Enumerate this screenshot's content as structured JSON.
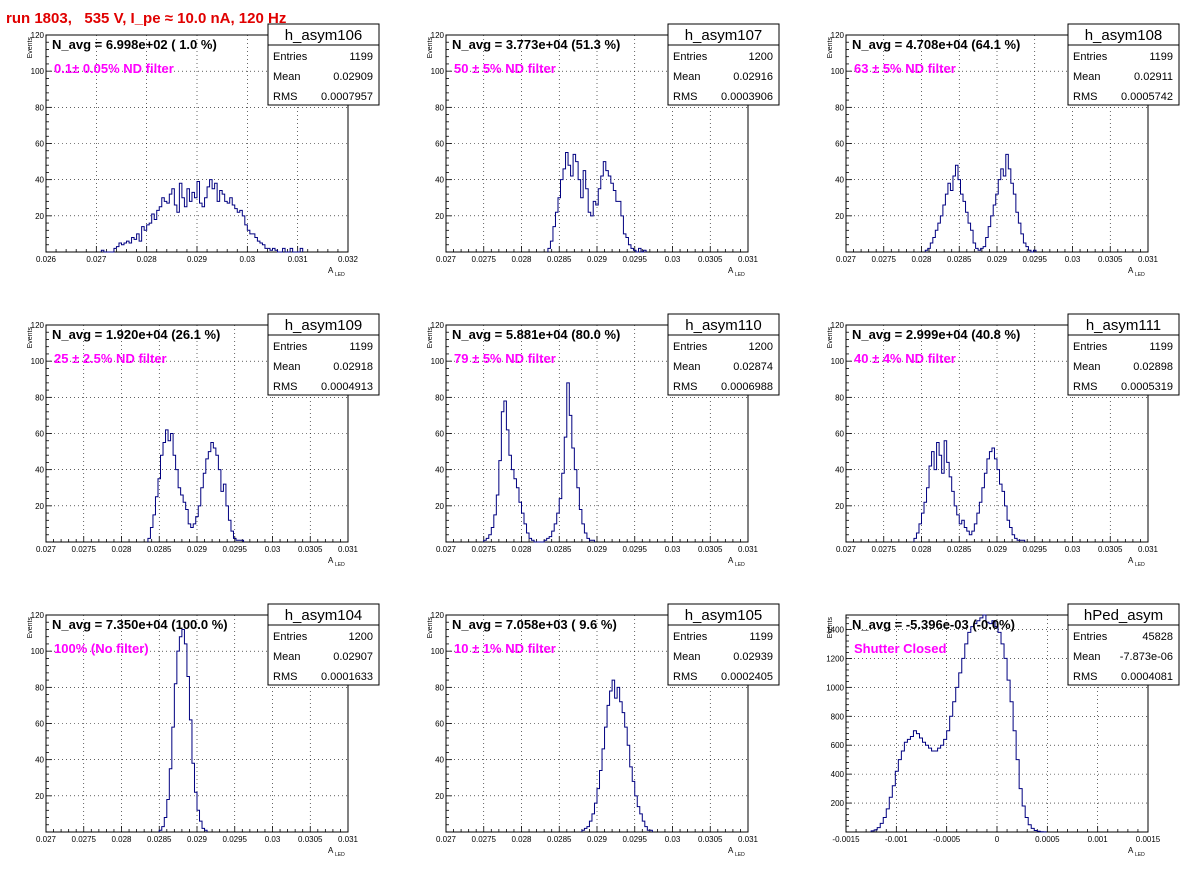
{
  "run_title": "run 1803,   535 V, I_pe ≈ 10.0 nA, 120 Hz",
  "colors": {
    "histogram_line": "#000080",
    "title_red": "#e00000",
    "filter_label": "#ff00ff",
    "grid": "#000000"
  },
  "y_axis_label": "Events",
  "x_axis_label_main": "A",
  "x_axis_label_sub": "LED",
  "stats_labels": {
    "entries": "Entries",
    "mean": "Mean",
    "rms": "RMS"
  },
  "chart_data": [
    {
      "type": "bar",
      "name": "h_asym106",
      "navg_label": "N_avg = 6.998e+02 ( 1.0 %)",
      "filter_label": "0.1± 0.05% ND filter",
      "entries": "1199",
      "mean": "0.02909",
      "rms": "0.0007957",
      "xlim": [
        0.026,
        0.032
      ],
      "ylim": [
        0,
        120
      ],
      "xticks": [
        0.026,
        0.027,
        0.028,
        0.029,
        0.03,
        0.031,
        0.032
      ],
      "xtick_labels": [
        "0.026",
        "0.027",
        "0.028",
        "0.029",
        "0.03",
        "0.031",
        "0.032"
      ],
      "yticks": [
        20,
        40,
        60,
        80,
        100,
        120
      ],
      "ytick_labels": [
        "20",
        "40",
        "60",
        "80",
        "100",
        "120"
      ],
      "bin_start": 0.0271,
      "bin_width": 5e-05,
      "values": [
        1,
        0,
        0,
        0,
        0,
        2,
        3,
        5,
        4,
        5,
        6,
        5,
        8,
        7,
        10,
        6,
        14,
        12,
        15,
        16,
        21,
        18,
        23,
        25,
        30,
        28,
        27,
        32,
        35,
        26,
        22,
        38,
        30,
        25,
        35,
        28,
        33,
        30,
        39,
        27,
        25,
        30,
        36,
        40,
        35,
        38,
        28,
        34,
        32,
        28,
        27,
        30,
        26,
        24,
        22,
        23,
        20,
        15,
        12,
        10,
        10,
        8,
        6,
        5,
        4,
        2,
        2,
        1,
        2,
        1,
        0,
        0,
        2,
        0,
        0,
        2,
        0,
        0,
        0,
        2
      ]
    },
    {
      "type": "bar",
      "name": "h_asym107",
      "navg_label": "N_avg = 3.773e+04 (51.3 %)",
      "filter_label": " 50 ± 5% ND filter",
      "entries": "1200",
      "mean": "0.02916",
      "rms": "0.0003906",
      "xlim": [
        0.027,
        0.031
      ],
      "ylim": [
        0,
        120
      ],
      "xticks": [
        0.027,
        0.0275,
        0.028,
        0.0285,
        0.029,
        0.0295,
        0.03,
        0.0305,
        0.031
      ],
      "xtick_labels": [
        "0.027",
        "0.0275",
        "0.028",
        "0.0285",
        "0.029",
        "0.0295",
        "0.03",
        "0.0305",
        "0.031"
      ],
      "yticks": [
        20,
        40,
        60,
        80,
        100,
        120
      ],
      "ytick_labels": [
        "20",
        "40",
        "60",
        "80",
        "100",
        "120"
      ],
      "bin_start": 0.02835,
      "bin_width": 3.333e-05,
      "values": [
        2,
        6,
        14,
        22,
        30,
        40,
        46,
        55,
        48,
        42,
        54,
        50,
        40,
        30,
        45,
        35,
        22,
        20,
        28,
        26,
        35,
        42,
        50,
        45,
        42,
        38,
        34,
        28,
        28,
        20,
        10,
        8,
        4,
        2,
        1,
        0,
        2,
        0,
        1
      ]
    },
    {
      "type": "bar",
      "name": "h_asym108",
      "navg_label": "N_avg = 4.708e+04 (64.1 %)",
      "filter_label": " 63 ± 5% ND filter",
      "entries": "1199",
      "mean": "0.02911",
      "rms": "0.0005742",
      "xlim": [
        0.027,
        0.031
      ],
      "ylim": [
        0,
        120
      ],
      "xticks": [
        0.027,
        0.0275,
        0.028,
        0.0285,
        0.029,
        0.0295,
        0.03,
        0.0305,
        0.031
      ],
      "xtick_labels": [
        "0.027",
        "0.0275",
        "0.028",
        "0.0285",
        "0.029",
        "0.0295",
        "0.03",
        "0.0305",
        "0.031"
      ],
      "yticks": [
        20,
        40,
        60,
        80,
        100,
        120
      ],
      "ytick_labels": [
        "20",
        "40",
        "60",
        "80",
        "100",
        "120"
      ],
      "bin_start": 0.02805,
      "bin_width": 3.333e-05,
      "values": [
        1,
        2,
        5,
        8,
        12,
        16,
        20,
        26,
        32,
        38,
        34,
        42,
        48,
        40,
        32,
        28,
        22,
        16,
        12,
        5,
        2,
        1,
        2,
        3,
        8,
        14,
        20,
        26,
        32,
        40,
        46,
        42,
        54,
        46,
        38,
        32,
        22,
        16,
        10,
        5,
        3,
        1,
        0,
        1
      ]
    },
    {
      "type": "bar",
      "name": "h_asym109",
      "navg_label": "N_avg = 1.920e+04 (26.1 %)",
      "filter_label": " 25 ± 2.5% ND filter",
      "entries": "1199",
      "mean": "0.02918",
      "rms": "0.0004913",
      "xlim": [
        0.027,
        0.031
      ],
      "ylim": [
        0,
        120
      ],
      "xticks": [
        0.027,
        0.0275,
        0.028,
        0.0285,
        0.029,
        0.0295,
        0.03,
        0.0305,
        0.031
      ],
      "xtick_labels": [
        "0.027",
        "0.0275",
        "0.028",
        "0.0285",
        "0.029",
        "0.0295",
        "0.03",
        "0.0305",
        "0.031"
      ],
      "yticks": [
        20,
        40,
        60,
        80,
        100,
        120
      ],
      "ytick_labels": [
        "20",
        "40",
        "60",
        "80",
        "100",
        "120"
      ],
      "bin_start": 0.02835,
      "bin_width": 3.333e-05,
      "values": [
        2,
        8,
        15,
        25,
        35,
        48,
        55,
        62,
        56,
        60,
        48,
        40,
        30,
        26,
        22,
        18,
        10,
        8,
        10,
        14,
        20,
        30,
        38,
        46,
        50,
        55,
        52,
        48,
        40,
        28,
        32,
        20,
        12,
        6,
        2,
        1,
        1,
        1
      ]
    },
    {
      "type": "bar",
      "name": "h_asym110",
      "navg_label": "N_avg = 5.881e+04 (80.0 %)",
      "filter_label": " 79 ± 5% ND filter",
      "entries": "1200",
      "mean": "0.02874",
      "rms": "0.0006988",
      "xlim": [
        0.027,
        0.031
      ],
      "ylim": [
        0,
        120
      ],
      "xticks": [
        0.027,
        0.0275,
        0.028,
        0.0285,
        0.029,
        0.0295,
        0.03,
        0.0305,
        0.031
      ],
      "xtick_labels": [
        "0.027",
        "0.0275",
        "0.028",
        "0.0285",
        "0.029",
        "0.0295",
        "0.03",
        "0.0305",
        "0.031"
      ],
      "yticks": [
        20,
        40,
        60,
        80,
        100,
        120
      ],
      "ytick_labels": [
        "20",
        "40",
        "60",
        "80",
        "100",
        "120"
      ],
      "bin_start": 0.0275,
      "bin_width": 3.333e-05,
      "values": [
        1,
        2,
        4,
        8,
        15,
        26,
        45,
        72,
        78,
        62,
        48,
        40,
        35,
        30,
        22,
        16,
        10,
        5,
        2,
        1,
        0,
        0,
        0,
        0,
        1,
        2,
        3,
        6,
        10,
        16,
        24,
        38,
        58,
        88,
        70,
        52,
        40,
        30,
        18,
        10,
        5,
        2,
        1,
        1
      ]
    },
    {
      "type": "bar",
      "name": "h_asym111",
      "navg_label": "N_avg = 2.999e+04 (40.8 %)",
      "filter_label": " 40 ± 4% ND filter",
      "entries": "1199",
      "mean": "0.02898",
      "rms": "0.0005319",
      "xlim": [
        0.027,
        0.031
      ],
      "ylim": [
        0,
        120
      ],
      "xticks": [
        0.027,
        0.0275,
        0.028,
        0.0285,
        0.029,
        0.0295,
        0.03,
        0.0305,
        0.031
      ],
      "xtick_labels": [
        "0.027",
        "0.0275",
        "0.028",
        "0.0285",
        "0.029",
        "0.0295",
        "0.03",
        "0.0305",
        "0.031"
      ],
      "yticks": [
        20,
        40,
        60,
        80,
        100,
        120
      ],
      "ytick_labels": [
        "20",
        "40",
        "60",
        "80",
        "100",
        "120"
      ],
      "bin_start": 0.0279,
      "bin_width": 3.333e-05,
      "values": [
        2,
        5,
        10,
        16,
        22,
        30,
        42,
        50,
        40,
        55,
        48,
        38,
        56,
        44,
        36,
        28,
        20,
        15,
        10,
        12,
        8,
        6,
        4,
        6,
        10,
        16,
        22,
        30,
        38,
        46,
        50,
        52,
        46,
        40,
        32,
        28,
        20,
        12,
        8,
        4,
        2,
        1,
        1,
        1
      ]
    },
    {
      "type": "bar",
      "name": "h_asym104",
      "navg_label": "N_avg = 7.350e+04 (100.0 %)",
      "filter_label": " 100% (No filter)",
      "entries": "1200",
      "mean": "0.02907",
      "rms": "0.0001633",
      "xlim": [
        0.027,
        0.031
      ],
      "ylim": [
        0,
        120
      ],
      "xticks": [
        0.027,
        0.0275,
        0.028,
        0.0285,
        0.029,
        0.0295,
        0.03,
        0.0305,
        0.031
      ],
      "xtick_labels": [
        "0.027",
        "0.0275",
        "0.028",
        "0.0285",
        "0.029",
        "0.0295",
        "0.03",
        "0.0305",
        "0.031"
      ],
      "yticks": [
        20,
        40,
        60,
        80,
        100,
        120
      ],
      "ytick_labels": [
        "20",
        "40",
        "60",
        "80",
        "100",
        "120"
      ],
      "bin_start": 0.0285,
      "bin_width": 3.333e-05,
      "values": [
        1,
        3,
        8,
        18,
        35,
        58,
        82,
        100,
        108,
        112,
        104,
        86,
        62,
        38,
        22,
        12,
        6,
        2,
        1
      ]
    },
    {
      "type": "bar",
      "name": "h_asym105",
      "navg_label": "N_avg = 7.058e+03 ( 9.6 %)",
      "filter_label": " 10 ± 1% ND filter",
      "entries": "1199",
      "mean": "0.02939",
      "rms": "0.0002405",
      "xlim": [
        0.027,
        0.031
      ],
      "ylim": [
        0,
        120
      ],
      "xticks": [
        0.027,
        0.0275,
        0.028,
        0.0285,
        0.029,
        0.0295,
        0.03,
        0.0305,
        0.031
      ],
      "xtick_labels": [
        "0.027",
        "0.0275",
        "0.028",
        "0.0285",
        "0.029",
        "0.0295",
        "0.03",
        "0.0305",
        "0.031"
      ],
      "yticks": [
        20,
        40,
        60,
        80,
        100,
        120
      ],
      "ytick_labels": [
        "20",
        "40",
        "60",
        "80",
        "100",
        "120"
      ],
      "bin_start": 0.0288,
      "bin_width": 3.333e-05,
      "values": [
        1,
        2,
        3,
        6,
        10,
        16,
        24,
        34,
        46,
        58,
        70,
        78,
        84,
        74,
        80,
        72,
        66,
        58,
        48,
        36,
        28,
        20,
        14,
        10,
        6,
        3,
        1,
        1
      ]
    },
    {
      "type": "bar",
      "name": "hPed_asym",
      "navg_label": "N_avg = -5.396e-03 (-0.0%)",
      "filter_label": "Shutter Closed",
      "entries": "45828",
      "mean": "-7.873e-06",
      "rms": "0.0004081",
      "xlim": [
        -0.0015,
        0.0015
      ],
      "ylim": [
        0,
        1500
      ],
      "xticks": [
        -0.0015,
        -0.001,
        -0.0005,
        0,
        0.0005,
        0.001,
        0.0015
      ],
      "xtick_labels": [
        "-0.0015",
        "-0.001",
        "-0.0005",
        "0",
        "0.0005",
        "0.001",
        "0.0015"
      ],
      "yticks": [
        200,
        400,
        600,
        800,
        1000,
        1200,
        1400
      ],
      "ytick_labels": [
        "200",
        "400",
        "600",
        "800",
        "1000",
        "1200",
        "1400"
      ],
      "bin_start": -0.00125,
      "bin_width": 3e-05,
      "values": [
        8,
        15,
        30,
        60,
        100,
        160,
        240,
        320,
        420,
        500,
        560,
        620,
        640,
        660,
        700,
        680,
        650,
        620,
        600,
        580,
        560,
        560,
        580,
        600,
        640,
        700,
        800,
        900,
        1000,
        1100,
        1200,
        1300,
        1380,
        1420,
        1440,
        1460,
        1480,
        1500,
        1450,
        1440,
        1460,
        1420,
        1380,
        1300,
        1200,
        1050,
        900,
        700,
        500,
        300,
        180,
        100,
        50,
        25,
        10,
        5,
        2,
        1
      ]
    }
  ]
}
